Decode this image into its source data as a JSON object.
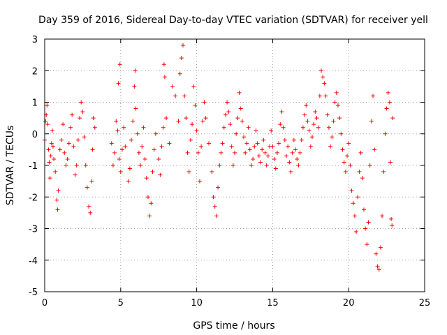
{
  "chart_data": {
    "type": "scatter",
    "title": "Day 359 of 2016, Sidereal Day-to-day VTEC variation (SDTVAR) for receiver yell",
    "xlabel": "GPS time / hours",
    "ylabel": "SDTVAR / TECUs",
    "xlim": [
      0,
      25
    ],
    "ylim": [
      -5,
      3
    ],
    "xticks": [
      0,
      5,
      10,
      15,
      20,
      25
    ],
    "yticks": [
      -5,
      -4,
      -3,
      -2,
      -1,
      0,
      1,
      2,
      3
    ],
    "grid": true,
    "marker": "+",
    "series": [
      {
        "name": "SDTVAR",
        "color": "#ff0000",
        "points": [
          [
            0.0,
            -0.2
          ],
          [
            0.05,
            0.4
          ],
          [
            0.1,
            0.6
          ],
          [
            0.15,
            0.9
          ],
          [
            0.2,
            0.3
          ],
          [
            0.25,
            -0.5
          ],
          [
            0.3,
            -0.9
          ],
          [
            0.35,
            -1.4
          ],
          [
            0.4,
            -0.7
          ],
          [
            0.45,
            -0.3
          ],
          [
            0.5,
            0.1
          ],
          [
            0.55,
            -0.4
          ],
          [
            0.6,
            -0.8
          ],
          [
            0.7,
            -1.2
          ],
          [
            0.8,
            -2.1
          ],
          [
            0.85,
            -2.4
          ],
          [
            0.9,
            -1.8
          ],
          [
            1.0,
            -0.5
          ],
          [
            1.1,
            -0.2
          ],
          [
            1.2,
            0.3
          ],
          [
            1.3,
            -0.6
          ],
          [
            1.4,
            -1.0
          ],
          [
            1.5,
            -0.8
          ],
          [
            1.6,
            -0.3
          ],
          [
            1.7,
            0.2
          ],
          [
            1.8,
            0.6
          ],
          [
            1.9,
            -0.4
          ],
          [
            2.0,
            -1.3
          ],
          [
            2.1,
            -1.0
          ],
          [
            2.2,
            -0.2
          ],
          [
            2.3,
            0.5
          ],
          [
            2.4,
            1.0
          ],
          [
            2.5,
            0.7
          ],
          [
            2.6,
            -0.1
          ],
          [
            2.7,
            -1.0
          ],
          [
            2.8,
            -1.7
          ],
          [
            2.9,
            -2.3
          ],
          [
            3.0,
            -2.5
          ],
          [
            3.1,
            -1.5
          ],
          [
            3.15,
            -0.5
          ],
          [
            3.2,
            0.5
          ],
          [
            3.3,
            0.2
          ],
          [
            4.4,
            -0.3
          ],
          [
            4.5,
            -1.0
          ],
          [
            4.6,
            -0.6
          ],
          [
            4.7,
            0.4
          ],
          [
            4.8,
            0.1
          ],
          [
            4.9,
            -0.8
          ],
          [
            5.0,
            -1.2
          ],
          [
            5.1,
            -0.5
          ],
          [
            4.85,
            1.6
          ],
          [
            4.95,
            2.2
          ],
          [
            5.2,
            0.2
          ],
          [
            5.3,
            -0.4
          ],
          [
            5.5,
            -1.5
          ],
          [
            5.6,
            -1.1
          ],
          [
            5.7,
            -0.2
          ],
          [
            5.8,
            0.4
          ],
          [
            5.9,
            1.5
          ],
          [
            5.95,
            2.0
          ],
          [
            6.0,
            0.8
          ],
          [
            6.1,
            0.0
          ],
          [
            6.2,
            -0.6
          ],
          [
            6.3,
            -1.0
          ],
          [
            6.4,
            -0.4
          ],
          [
            6.5,
            0.2
          ],
          [
            6.6,
            -0.8
          ],
          [
            6.7,
            -1.4
          ],
          [
            6.8,
            -2.0
          ],
          [
            6.9,
            -2.6
          ],
          [
            7.0,
            -2.2
          ],
          [
            7.1,
            -1.2
          ],
          [
            7.2,
            -0.5
          ],
          [
            7.3,
            0.0
          ],
          [
            7.5,
            -0.8
          ],
          [
            7.6,
            -1.3
          ],
          [
            7.7,
            -0.4
          ],
          [
            7.8,
            0.2
          ],
          [
            7.85,
            2.2
          ],
          [
            7.9,
            1.8
          ],
          [
            8.0,
            0.5
          ],
          [
            8.2,
            -0.3
          ],
          [
            8.4,
            1.5
          ],
          [
            8.6,
            1.2
          ],
          [
            8.8,
            0.4
          ],
          [
            8.9,
            1.9
          ],
          [
            9.0,
            2.4
          ],
          [
            9.1,
            2.8
          ],
          [
            9.2,
            1.2
          ],
          [
            9.3,
            0.5
          ],
          [
            9.4,
            -0.6
          ],
          [
            9.5,
            -1.2
          ],
          [
            9.6,
            -0.2
          ],
          [
            9.7,
            0.3
          ],
          [
            9.8,
            1.5
          ],
          [
            9.9,
            0.9
          ],
          [
            10.0,
            0.1
          ],
          [
            10.1,
            -0.6
          ],
          [
            10.2,
            -1.5
          ],
          [
            10.3,
            -0.4
          ],
          [
            10.4,
            0.4
          ],
          [
            10.5,
            1.0
          ],
          [
            10.6,
            0.5
          ],
          [
            10.8,
            -0.3
          ],
          [
            11.0,
            -1.2
          ],
          [
            11.1,
            -2.0
          ],
          [
            11.2,
            -2.3
          ],
          [
            11.3,
            -2.6
          ],
          [
            11.4,
            -1.7
          ],
          [
            11.5,
            -1.0
          ],
          [
            11.6,
            -0.6
          ],
          [
            11.7,
            -0.3
          ],
          [
            11.8,
            0.2
          ],
          [
            11.9,
            0.6
          ],
          [
            12.0,
            1.0
          ],
          [
            12.1,
            0.7
          ],
          [
            12.2,
            0.3
          ],
          [
            12.3,
            -0.4
          ],
          [
            12.4,
            -1.0
          ],
          [
            12.5,
            -0.6
          ],
          [
            12.6,
            0.0
          ],
          [
            12.7,
            0.5
          ],
          [
            12.8,
            1.3
          ],
          [
            12.9,
            0.8
          ],
          [
            13.0,
            0.4
          ],
          [
            13.1,
            -0.1
          ],
          [
            13.2,
            -0.6
          ],
          [
            13.3,
            -0.3
          ],
          [
            13.4,
            0.2
          ],
          [
            13.5,
            -0.5
          ],
          [
            13.6,
            -1.0
          ],
          [
            13.7,
            -0.8
          ],
          [
            13.8,
            -0.4
          ],
          [
            13.9,
            0.1
          ],
          [
            14.0,
            -0.3
          ],
          [
            14.1,
            -0.7
          ],
          [
            14.2,
            -0.9
          ],
          [
            14.3,
            -0.5
          ],
          [
            14.4,
            -0.2
          ],
          [
            14.5,
            -0.6
          ],
          [
            14.6,
            -1.0
          ],
          [
            14.7,
            -0.7
          ],
          [
            14.8,
            -0.4
          ],
          [
            14.9,
            0.1
          ],
          [
            15.0,
            -0.4
          ],
          [
            15.1,
            -0.8
          ],
          [
            15.2,
            -1.1
          ],
          [
            15.3,
            -0.6
          ],
          [
            15.4,
            -0.3
          ],
          [
            15.5,
            0.3
          ],
          [
            15.6,
            0.7
          ],
          [
            15.7,
            0.2
          ],
          [
            15.8,
            -0.2
          ],
          [
            15.9,
            -0.7
          ],
          [
            16.0,
            -0.4
          ],
          [
            16.1,
            -0.9
          ],
          [
            16.2,
            -1.2
          ],
          [
            16.3,
            -0.6
          ],
          [
            16.4,
            -0.2
          ],
          [
            16.5,
            -0.5
          ],
          [
            16.6,
            -0.8
          ],
          [
            16.7,
            -1.0
          ],
          [
            16.8,
            -0.6
          ],
          [
            16.9,
            -0.2
          ],
          [
            17.0,
            0.2
          ],
          [
            17.1,
            0.6
          ],
          [
            17.2,
            0.9
          ],
          [
            17.3,
            0.4
          ],
          [
            17.4,
            0.1
          ],
          [
            17.5,
            -0.4
          ],
          [
            17.6,
            -0.1
          ],
          [
            17.7,
            0.3
          ],
          [
            17.8,
            0.7
          ],
          [
            17.9,
            0.5
          ],
          [
            18.0,
            0.2
          ],
          [
            18.1,
            1.2
          ],
          [
            18.2,
            2.0
          ],
          [
            18.3,
            1.8
          ],
          [
            18.4,
            1.6
          ],
          [
            18.5,
            1.2
          ],
          [
            18.6,
            0.6
          ],
          [
            18.7,
            0.2
          ],
          [
            18.8,
            -0.4
          ],
          [
            18.9,
            -0.1
          ],
          [
            19.0,
            0.4
          ],
          [
            19.1,
            1.0
          ],
          [
            19.2,
            1.3
          ],
          [
            19.3,
            0.9
          ],
          [
            19.4,
            0.5
          ],
          [
            19.5,
            0.0
          ],
          [
            19.6,
            -0.5
          ],
          [
            19.7,
            -0.9
          ],
          [
            19.8,
            -1.2
          ],
          [
            19.9,
            -0.7
          ],
          [
            20.0,
            -0.3
          ],
          [
            20.1,
            -1.0
          ],
          [
            20.2,
            -1.8
          ],
          [
            20.3,
            -2.2
          ],
          [
            20.4,
            -2.6
          ],
          [
            20.5,
            -3.1
          ],
          [
            20.6,
            -2.0
          ],
          [
            20.7,
            -1.2
          ],
          [
            20.8,
            -0.6
          ],
          [
            20.9,
            -1.4
          ],
          [
            21.0,
            -2.4
          ],
          [
            21.1,
            -3.0
          ],
          [
            21.2,
            -3.5
          ],
          [
            21.3,
            -2.8
          ],
          [
            21.4,
            -1.0
          ],
          [
            21.5,
            0.4
          ],
          [
            21.6,
            1.2
          ],
          [
            21.7,
            -0.5
          ],
          [
            21.8,
            -3.8
          ],
          [
            21.9,
            -4.2
          ],
          [
            22.0,
            -4.3
          ],
          [
            22.1,
            -3.6
          ],
          [
            22.2,
            -2.6
          ],
          [
            22.3,
            -1.2
          ],
          [
            22.4,
            0.0
          ],
          [
            22.5,
            0.8
          ],
          [
            22.6,
            1.3
          ],
          [
            22.7,
            1.0
          ],
          [
            22.75,
            -0.9
          ],
          [
            22.8,
            -2.7
          ],
          [
            22.85,
            -2.9
          ],
          [
            22.9,
            0.5
          ]
        ]
      }
    ]
  }
}
